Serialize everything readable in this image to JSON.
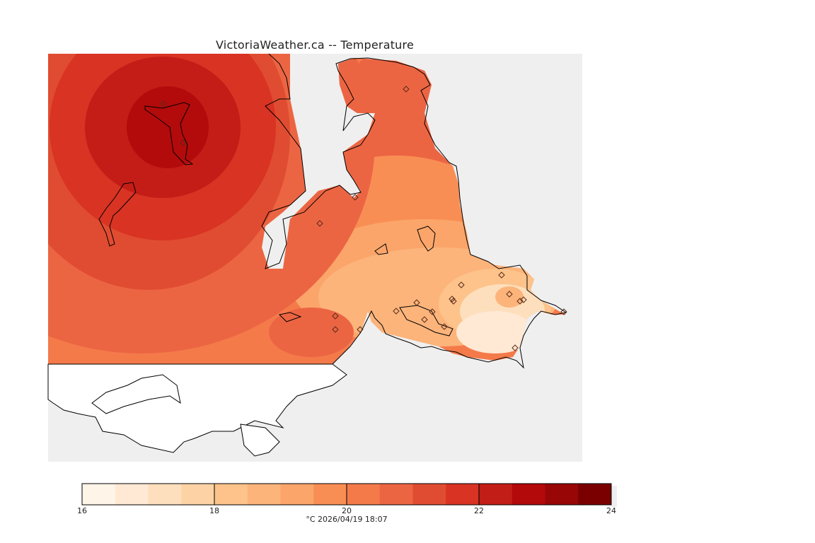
{
  "title": "VictoriaWeather.ca -- Temperature",
  "colorbar": {
    "min": 16,
    "max": 24,
    "tick_labels": [
      "16",
      "18",
      "20",
      "22",
      "24"
    ],
    "caption": "°C  2026/04/19 18:07",
    "colors": [
      "#fff4e8",
      "#ffe9d4",
      "#fedfbd",
      "#fdd3a5",
      "#fdc38a",
      "#fcb47b",
      "#fba56a",
      "#f98e54",
      "#f47a4a",
      "#ec6543",
      "#e04c31",
      "#d83323",
      "#c31d17",
      "#b3090a",
      "#980606",
      "#7a0000"
    ]
  },
  "map": {
    "background_color": "#efefef",
    "land_outline_color": "#000000",
    "field_colors": {
      "hot_core": "#b30b0b",
      "very_warm": "#c41d17",
      "warm": "#d83323",
      "mild_warm": "#e04c31",
      "mid": "#ec6543",
      "mid_light": "#f98e54",
      "light": "#fcb47b",
      "pale": "#fdd3a5",
      "palest": "#ffe9d4"
    },
    "stations_count": 22
  }
}
